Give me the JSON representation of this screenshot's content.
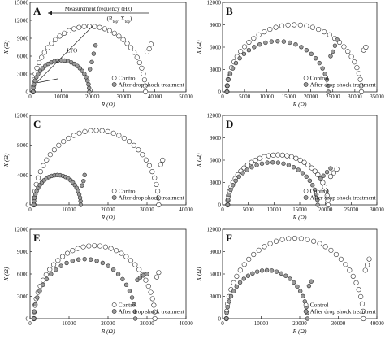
{
  "chart_data": [
    {
      "panel": "A",
      "type": "scatter",
      "xlabel": "R (Ω)",
      "ylabel": "X (Ω)",
      "xlim": [
        0,
        50000
      ],
      "ylim": [
        0,
        15000
      ],
      "xticks": [
        0,
        10000,
        20000,
        30000,
        40000,
        50000
      ],
      "yticks": [
        0,
        3000,
        6000,
        9000,
        12000,
        15000
      ],
      "xtick_labels": [
        "0",
        "10000",
        "20000",
        "30000",
        "40000",
        "50000"
      ],
      "ytick_labels": [
        "0",
        "3000",
        "6000",
        "9000",
        "12000",
        "15000"
      ],
      "grid": false,
      "legend": "bottom-right",
      "legend_labels": [
        "Control",
        "After drop shock treatment"
      ],
      "series": [
        {
          "name": "Control",
          "marker": "open-circle",
          "arc": {
            "x0": 1000,
            "x1": 37000,
            "peak": 11000,
            "skew": 0.45
          },
          "tail": [
            [
              37500,
              6700
            ],
            [
              38200,
              7200
            ],
            [
              38800,
              8000
            ]
          ]
        },
        {
          "name": "After drop shock treatment",
          "marker": "gray-circle",
          "arc": {
            "x0": 1000,
            "x1": 19000,
            "peak": 5300,
            "skew": 0.45
          },
          "tail": [
            [
              19200,
              3800
            ],
            [
              19800,
              5000
            ],
            [
              20400,
              6400
            ],
            [
              21000,
              7800
            ]
          ]
        }
      ],
      "annotations": [
        {
          "text": "Measurement frequency (Hz)",
          "type": "arrow-left"
        },
        {
          "text": "(R",
          "sub1": "top",
          "mid": ", X",
          "sub2": "top",
          "end": ")",
          "type": "label"
        },
        {
          "text": "LTO",
          "type": "label"
        }
      ]
    },
    {
      "panel": "B",
      "type": "scatter",
      "xlabel": "R (Ω)",
      "ylabel": "X (Ω)",
      "xlim": [
        0,
        35000
      ],
      "ylim": [
        0,
        12000
      ],
      "xticks": [
        0,
        5000,
        10000,
        15000,
        20000,
        25000,
        30000,
        35000
      ],
      "yticks": [
        0,
        3000,
        6000,
        9000,
        12000
      ],
      "xtick_labels": [
        "0",
        "5000",
        "10000",
        "15000",
        "20000",
        "25000",
        "30000",
        "35000"
      ],
      "ytick_labels": [
        "0",
        "3000",
        "6000",
        "9000",
        "12000"
      ],
      "grid": false,
      "legend": "bottom-right",
      "legend_labels": [
        "Control",
        "After drop shock treatment"
      ],
      "series": [
        {
          "name": "Control",
          "marker": "open-circle",
          "arc": {
            "x0": 1000,
            "x1": 31500,
            "peak": 9000,
            "skew": 0.5
          },
          "tail": [
            [
              32000,
              5600
            ],
            [
              32500,
              6000
            ]
          ]
        },
        {
          "name": "After drop shock treatment",
          "marker": "gray-circle",
          "arc": {
            "x0": 1000,
            "x1": 24000,
            "peak": 6800,
            "skew": 0.5
          },
          "tail": [
            [
              24500,
              4800
            ],
            [
              25000,
              5400
            ],
            [
              25500,
              6200
            ],
            [
              26000,
              7000
            ]
          ]
        }
      ]
    },
    {
      "panel": "C",
      "type": "scatter",
      "xlabel": "R (Ω)",
      "ylabel": "X (Ω)",
      "xlim": [
        0,
        40000
      ],
      "ylim": [
        0,
        12000
      ],
      "xticks": [
        0,
        10000,
        20000,
        30000,
        40000
      ],
      "yticks": [
        0,
        4000,
        8000,
        12000
      ],
      "xtick_labels": [
        "0",
        "10000",
        "20000",
        "30000",
        "40000"
      ],
      "ytick_labels": [
        "0",
        "4000",
        "8000",
        "12000"
      ],
      "grid": false,
      "legend": "bottom-right",
      "legend_labels": [
        "Control",
        "After drop shock treatment"
      ],
      "series": [
        {
          "name": "Control",
          "marker": "open-circle",
          "arc": {
            "x0": 1000,
            "x1": 33000,
            "peak": 10000,
            "skew": 0.5
          },
          "tail": [
            [
              33500,
              5400
            ],
            [
              34000,
              6000
            ]
          ]
        },
        {
          "name": "After drop shock treatment",
          "marker": "gray-circle",
          "arc": {
            "x0": 1000,
            "x1": 13000,
            "peak": 4000,
            "skew": 0.5
          },
          "tail": [
            [
              13300,
              2600
            ],
            [
              13700,
              3200
            ],
            [
              14000,
              4000
            ]
          ]
        }
      ]
    },
    {
      "panel": "D",
      "type": "scatter",
      "xlabel": "R (Ω)",
      "ylabel": "X (Ω)",
      "xlim": [
        0,
        30000
      ],
      "ylim": [
        0,
        12000
      ],
      "xticks": [
        0,
        5000,
        10000,
        15000,
        20000,
        25000,
        30000
      ],
      "yticks": [
        0,
        3000,
        6000,
        9000,
        12000
      ],
      "xtick_labels": [
        "0",
        "5000",
        "10000",
        "15000",
        "20000",
        "25000",
        "30000"
      ],
      "ytick_labels": [
        "0",
        "3000",
        "6000",
        "9000",
        "12000"
      ],
      "grid": false,
      "legend": "bottom-right",
      "legend_labels": [
        "Control",
        "After drop shock treatment"
      ],
      "series": [
        {
          "name": "Control",
          "marker": "open-circle",
          "arc": {
            "x0": 1000,
            "x1": 20500,
            "peak": 6700,
            "skew": 0.5
          },
          "tail": [
            [
              21000,
              3800
            ],
            [
              21600,
              4300
            ],
            [
              22200,
              4800
            ]
          ]
        },
        {
          "name": "After drop shock treatment",
          "marker": "gray-circle",
          "arc": {
            "x0": 1000,
            "x1": 18500,
            "peak": 5700,
            "skew": 0.5
          },
          "tail": [
            [
              19000,
              3500
            ],
            [
              19600,
              3900
            ],
            [
              20300,
              4400
            ],
            [
              21000,
              4900
            ]
          ]
        }
      ]
    },
    {
      "panel": "E",
      "type": "scatter",
      "xlabel": "R (Ω)",
      "ylabel": "X (Ω)",
      "xlim": [
        0,
        40000
      ],
      "ylim": [
        0,
        12000
      ],
      "xticks": [
        0,
        10000,
        20000,
        30000,
        40000
      ],
      "yticks": [
        0,
        3000,
        6000,
        9000,
        12000
      ],
      "xtick_labels": [
        "0",
        "10000",
        "20000",
        "30000",
        "40000"
      ],
      "ytick_labels": [
        "0",
        "3000",
        "6000",
        "9000",
        "12000"
      ],
      "grid": false,
      "legend": "bottom-right",
      "legend_labels": [
        "Control",
        "After drop shock treatment"
      ],
      "series": [
        {
          "name": "Control",
          "marker": "open-circle",
          "arc": {
            "x0": 1000,
            "x1": 32000,
            "peak": 9800,
            "skew": 0.5
          },
          "tail": [
            [
              32500,
              5600
            ],
            [
              33000,
              6200
            ]
          ]
        },
        {
          "name": "After drop shock treatment",
          "marker": "gray-circle",
          "arc": {
            "x0": 1000,
            "x1": 27000,
            "peak": 8000,
            "skew": 0.5
          },
          "tail": [
            [
              27500,
              5200
            ],
            [
              28200,
              5500
            ],
            [
              29000,
              5800
            ],
            [
              30000,
              6000
            ]
          ]
        }
      ]
    },
    {
      "panel": "F",
      "type": "scatter",
      "xlabel": "R (Ω)",
      "ylabel": "X (Ω)",
      "xlim": [
        0,
        40000
      ],
      "ylim": [
        0,
        12000
      ],
      "xticks": [
        0,
        10000,
        20000,
        30000,
        40000
      ],
      "yticks": [
        0,
        3000,
        6000,
        9000,
        12000
      ],
      "xtick_labels": [
        "0",
        "10000",
        "20000",
        "30000",
        "40000"
      ],
      "ytick_labels": [
        "0",
        "3000",
        "6000",
        "9000",
        "12000"
      ],
      "grid": false,
      "legend": "bottom-right",
      "legend_labels": [
        "Control",
        "After drop shock treatment"
      ],
      "series": [
        {
          "name": "Control",
          "marker": "open-circle",
          "arc": {
            "x0": 1000,
            "x1": 36500,
            "peak": 10800,
            "skew": 0.5
          },
          "tail": [
            [
              37000,
              6500
            ],
            [
              37500,
              7200
            ],
            [
              38000,
              8000
            ]
          ]
        },
        {
          "name": "After drop shock treatment",
          "marker": "gray-circle",
          "arc": {
            "x0": 1000,
            "x1": 22000,
            "peak": 6500,
            "skew": 0.5
          },
          "tail": [
            [
              22400,
              4400
            ],
            [
              23000,
              5000
            ]
          ]
        }
      ]
    }
  ]
}
